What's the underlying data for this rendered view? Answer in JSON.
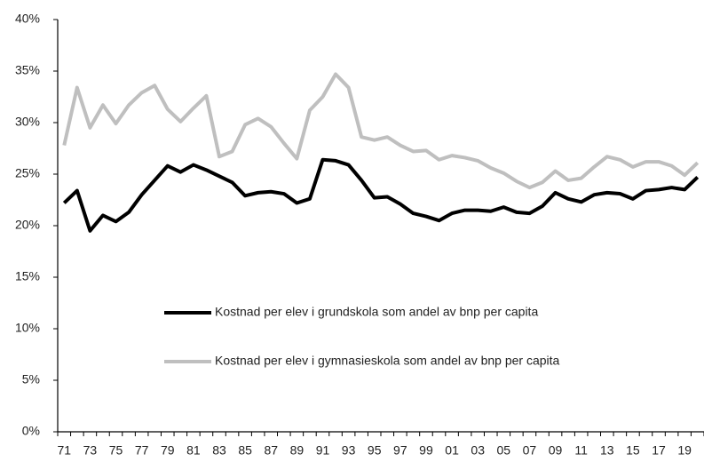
{
  "chart_data": {
    "type": "line",
    "categories": [
      "71",
      null,
      "73",
      null,
      "75",
      null,
      "77",
      null,
      "79",
      null,
      "81",
      null,
      "83",
      null,
      "85",
      null,
      "87",
      null,
      "89",
      null,
      "91",
      null,
      "93",
      null,
      "95",
      null,
      "97",
      null,
      "99",
      null,
      "01",
      null,
      "03",
      null,
      "05",
      null,
      "07",
      null,
      "09",
      null,
      "11",
      null,
      "13",
      null,
      "15",
      null,
      "17",
      null,
      "19",
      null
    ],
    "series": [
      {
        "name": "Kostnad per elev i grundskola som andel av bnp per capita",
        "color": "#000000",
        "values": [
          22.2,
          23.4,
          19.5,
          21.0,
          20.4,
          21.3,
          23.0,
          24.4,
          25.8,
          25.2,
          25.9,
          25.4,
          24.8,
          24.2,
          22.9,
          23.2,
          23.3,
          23.1,
          22.2,
          22.6,
          26.4,
          26.3,
          25.9,
          24.4,
          22.7,
          22.8,
          22.1,
          21.2,
          20.9,
          20.5,
          21.2,
          21.5,
          21.5,
          21.4,
          21.8,
          21.3,
          21.2,
          21.9,
          23.2,
          22.6,
          22.3,
          23.0,
          23.2,
          23.1,
          22.6,
          23.4,
          23.5,
          23.7,
          23.5,
          24.7
        ]
      },
      {
        "name": "Kostnad per elev i gymnasieskola som andel av bnp per capita",
        "color": "#bfbfbf",
        "values": [
          27.8,
          33.4,
          29.5,
          31.7,
          29.9,
          31.7,
          32.9,
          33.6,
          31.3,
          30.1,
          31.4,
          32.6,
          26.7,
          27.2,
          29.8,
          30.4,
          29.6,
          28.0,
          26.5,
          31.2,
          32.5,
          34.7,
          33.4,
          28.6,
          28.3,
          28.6,
          27.8,
          27.2,
          27.3,
          26.4,
          26.8,
          26.6,
          26.3,
          25.6,
          25.1,
          24.3,
          23.7,
          24.2,
          25.3,
          24.4,
          24.6,
          25.7,
          26.7,
          26.4,
          25.7,
          26.2,
          26.2,
          25.8,
          24.9,
          26.1
        ]
      }
    ],
    "ylim": [
      0,
      40
    ],
    "yticks": [
      {
        "value": 0,
        "label": "0%"
      },
      {
        "value": 5,
        "label": "5%"
      },
      {
        "value": 10,
        "label": "10%"
      },
      {
        "value": 15,
        "label": "15%"
      },
      {
        "value": 20,
        "label": "20%"
      },
      {
        "value": 25,
        "label": "25%"
      },
      {
        "value": 30,
        "label": "30%"
      },
      {
        "value": 35,
        "label": "35%"
      },
      {
        "value": 40,
        "label": "40%"
      }
    ],
    "grid": false
  }
}
